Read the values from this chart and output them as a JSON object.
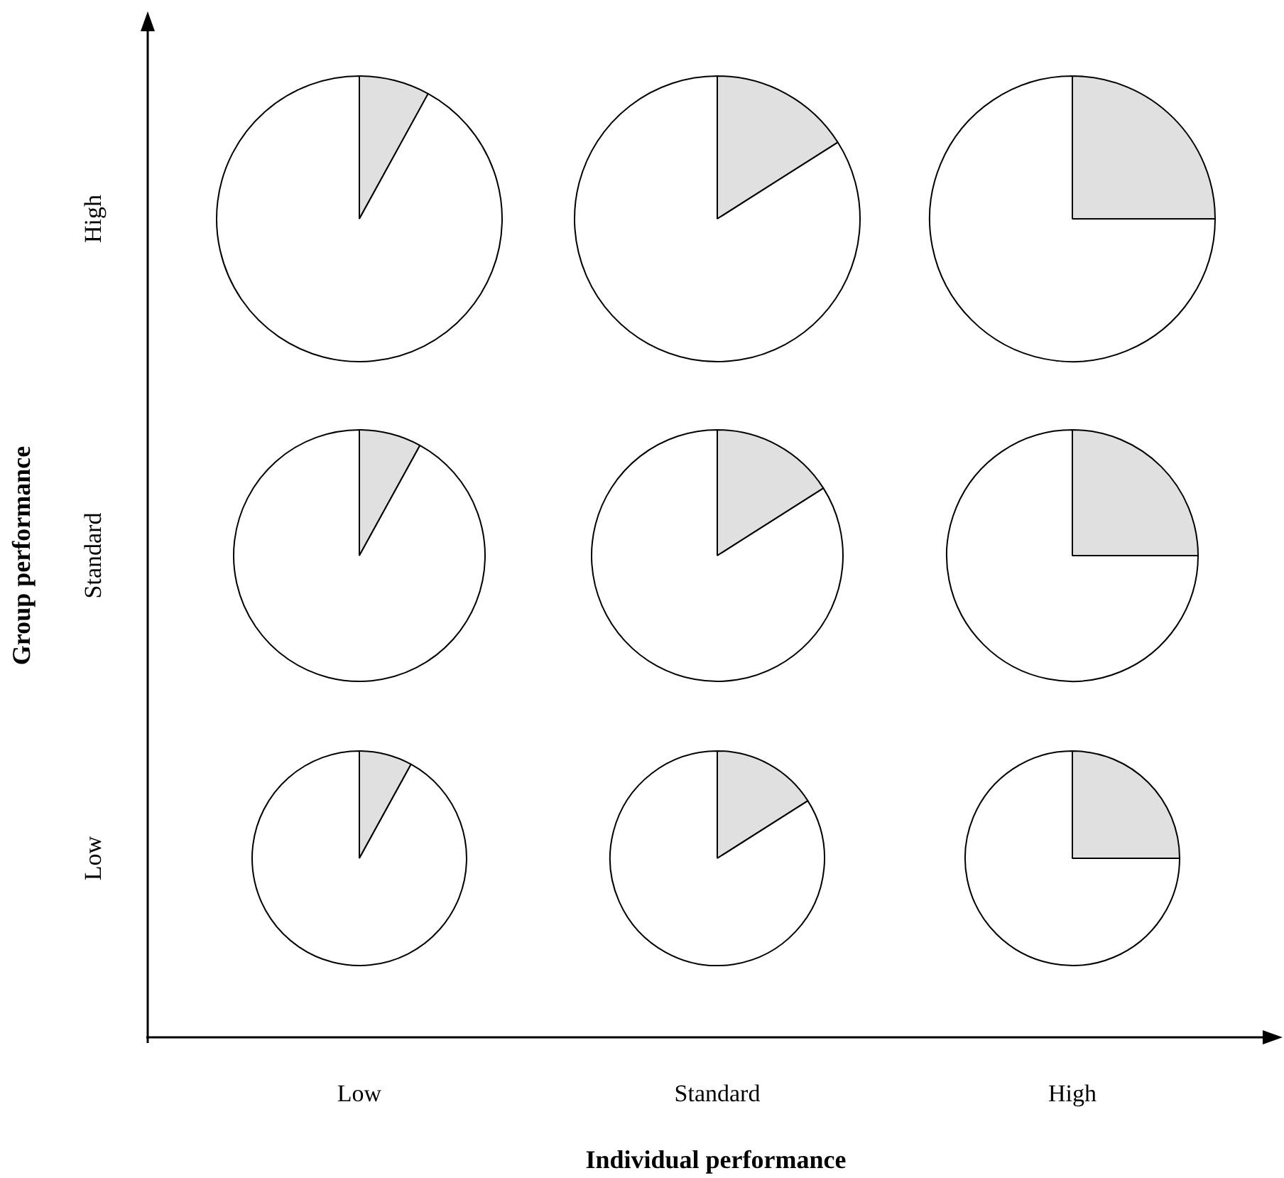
{
  "chart_data": [
    {
      "type": "other",
      "xlabel": "Individual performance",
      "ylabel": "Group performance",
      "categories": [
        "Low",
        "Standard",
        "High"
      ],
      "y_categories": [
        "High",
        "Standard",
        "Low"
      ]
    },
    {
      "type": "pie",
      "categories": [
        null,
        null
      ],
      "values": [
        8,
        92
      ],
      "colors": [
        "#e0e0e0",
        "#ffffff"
      ]
    },
    {
      "type": "pie",
      "categories": [
        null,
        null
      ],
      "values": [
        16,
        84
      ],
      "colors": [
        "#e0e0e0",
        "#ffffff"
      ]
    },
    {
      "type": "pie",
      "categories": [
        null,
        null
      ],
      "values": [
        25,
        75
      ],
      "colors": [
        "#e0e0e0",
        "#ffffff"
      ]
    },
    {
      "type": "pie",
      "categories": [
        null,
        null
      ],
      "values": [
        8,
        92
      ],
      "colors": [
        "#e0e0e0",
        "#ffffff"
      ]
    },
    {
      "type": "pie",
      "categories": [
        null,
        null
      ],
      "values": [
        16,
        84
      ],
      "colors": [
        "#e0e0e0",
        "#ffffff"
      ]
    },
    {
      "type": "pie",
      "categories": [
        null,
        null
      ],
      "values": [
        25,
        75
      ],
      "colors": [
        "#e0e0e0",
        "#ffffff"
      ]
    },
    {
      "type": "pie",
      "categories": [
        null,
        null
      ],
      "values": [
        8,
        92
      ],
      "colors": [
        "#e0e0e0",
        "#ffffff"
      ]
    },
    {
      "type": "pie",
      "categories": [
        null,
        null
      ],
      "values": [
        16,
        84
      ],
      "colors": [
        "#e0e0e0",
        "#ffffff"
      ]
    },
    {
      "type": "pie",
      "categories": [
        null,
        null
      ],
      "values": [
        25,
        75
      ],
      "colors": [
        "#e0e0e0",
        "#ffffff"
      ]
    }
  ]
}
